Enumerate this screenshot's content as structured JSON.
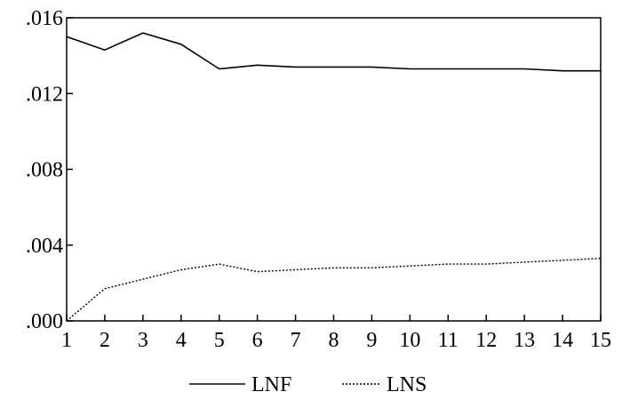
{
  "chart_data": {
    "type": "line",
    "x": [
      1,
      2,
      3,
      4,
      5,
      6,
      7,
      8,
      9,
      10,
      11,
      12,
      13,
      14,
      15
    ],
    "x_tick_labels": [
      "1",
      "2",
      "3",
      "4",
      "5",
      "6",
      "7",
      "8",
      "9",
      "10",
      "11",
      "12",
      "13",
      "14",
      "15"
    ],
    "y_tick_values": [
      0.0,
      0.004,
      0.008,
      0.012,
      0.016
    ],
    "y_tick_labels": [
      ".000",
      ".004",
      ".008",
      ".012",
      ".016"
    ],
    "xlim": [
      1,
      15
    ],
    "ylim": [
      0.0,
      0.016
    ],
    "grid": false,
    "legend_position": "bottom",
    "series": [
      {
        "name": "LNF",
        "line_style": "solid",
        "color": "#000000",
        "values": [
          0.015,
          0.0143,
          0.0152,
          0.0146,
          0.0133,
          0.0135,
          0.0134,
          0.0134,
          0.0134,
          0.0133,
          0.0133,
          0.0133,
          0.0133,
          0.0132,
          0.0132
        ]
      },
      {
        "name": "LNS",
        "line_style": "dotted",
        "color": "#000000",
        "values": [
          0.0,
          0.0017,
          0.0022,
          0.0027,
          0.003,
          0.0026,
          0.0027,
          0.0028,
          0.0028,
          0.0029,
          0.003,
          0.003,
          0.0031,
          0.0032,
          0.0033
        ]
      }
    ]
  }
}
